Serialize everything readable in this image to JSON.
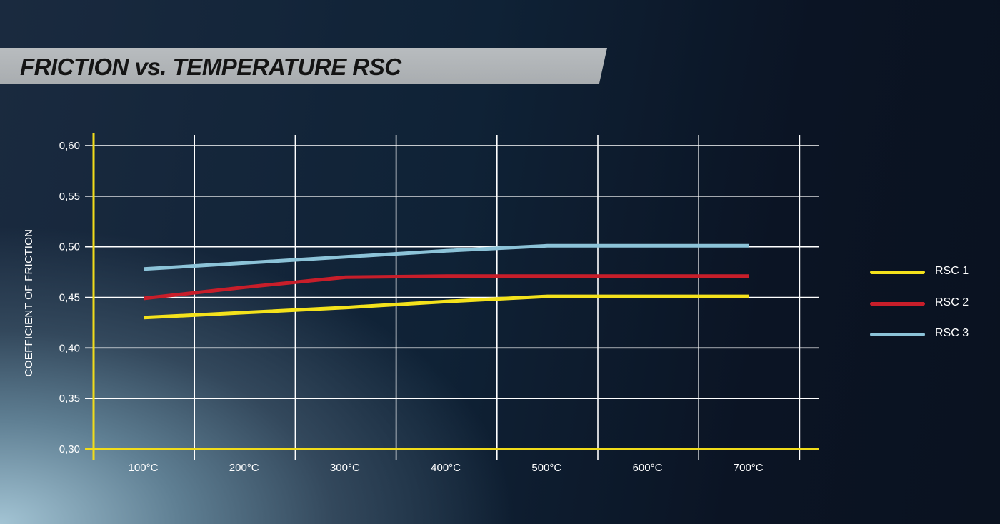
{
  "title": "FRICTION vs. TEMPERATURE RSC",
  "chart_data": {
    "type": "line",
    "title": "FRICTION vs. TEMPERATURE RSC",
    "xlabel": "",
    "ylabel": "COEFFICIENT OF FRICTION",
    "categories": [
      "100°C",
      "200°C",
      "300°C",
      "400°C",
      "500°C",
      "600°C",
      "700°C"
    ],
    "y_ticks": [
      "0,30",
      "0,35",
      "0,40",
      "0,45",
      "0,50",
      "0,55",
      "0,60"
    ],
    "ylim": [
      0.3,
      0.6
    ],
    "grid": true,
    "legend_position": "right",
    "series": [
      {
        "name": "RSC 1",
        "color": "#f4e21c",
        "values": [
          0.43,
          0.435,
          0.44,
          0.446,
          0.451,
          0.451,
          0.451
        ]
      },
      {
        "name": "RSC 2",
        "color": "#c81e2a",
        "values": [
          0.449,
          0.46,
          0.47,
          0.471,
          0.471,
          0.471,
          0.471
        ]
      },
      {
        "name": "RSC 3",
        "color": "#8cc3d8",
        "values": [
          0.478,
          0.484,
          0.49,
          0.496,
          0.501,
          0.501,
          0.501
        ]
      }
    ],
    "axis_color": "#f1dc1a",
    "grid_color": "#ffffff"
  }
}
